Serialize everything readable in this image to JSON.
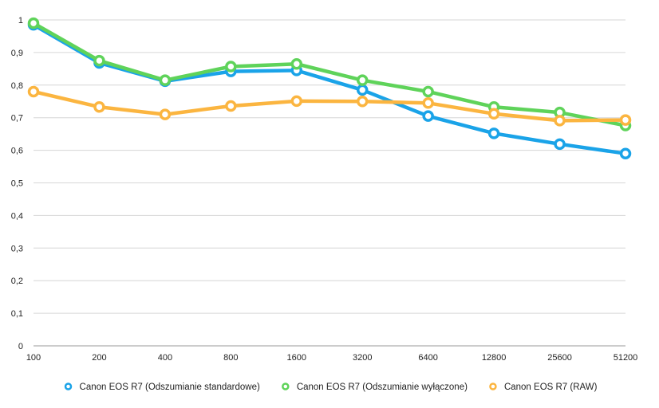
{
  "chart_data": {
    "type": "line",
    "categories": [
      "100",
      "200",
      "400",
      "800",
      "1600",
      "3200",
      "6400",
      "12800",
      "25600",
      "51200"
    ],
    "series": [
      {
        "name": "Canon EOS R7 (Odszumianie standardowe)",
        "color": "#1aa3e8",
        "values": [
          0.985,
          0.868,
          0.812,
          0.842,
          0.845,
          0.785,
          0.705,
          0.652,
          0.619,
          0.59
        ]
      },
      {
        "name": "Canon EOS R7 (Odszumianie wyłączone)",
        "color": "#5fd35a",
        "values": [
          0.99,
          0.875,
          0.815,
          0.857,
          0.865,
          0.815,
          0.78,
          0.733,
          0.716,
          0.676
        ]
      },
      {
        "name": "Canon EOS R7 (RAW)",
        "color": "#fbb540",
        "values": [
          0.78,
          0.733,
          0.71,
          0.736,
          0.751,
          0.75,
          0.745,
          0.712,
          0.691,
          0.693
        ]
      }
    ],
    "y_ticks": [
      "0",
      "0,1",
      "0,2",
      "0,3",
      "0,4",
      "0,5",
      "0,6",
      "0,7",
      "0,8",
      "0,9",
      "1"
    ],
    "ylim": [
      0,
      1
    ],
    "grid": true,
    "legend": "bottom",
    "title": "",
    "xlabel": "",
    "ylabel": ""
  }
}
